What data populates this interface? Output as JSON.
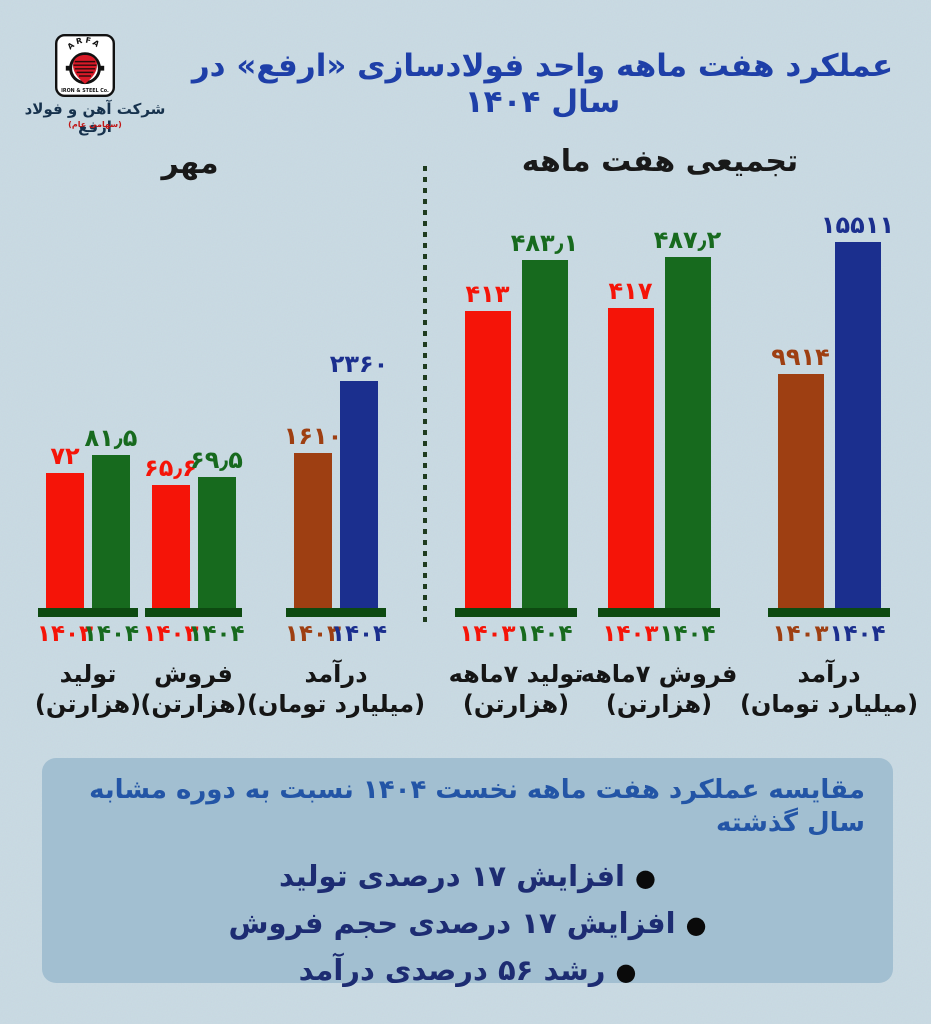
{
  "header": {
    "title": "عملکرد هفت ماهه واحد فولادسازی «ارفع» در سال ۱۴۰۴",
    "logo": {
      "arc_text": "ARFA",
      "sub_text": "IRON & STEEL Co.",
      "company_fa": "شرکت آهن و فولاد ارفع",
      "company_type": "(سهامی عام)"
    }
  },
  "colors": {
    "background": "#c9dae3",
    "red": "#f51408",
    "green": "#176a1e",
    "brown": "#9e3f12",
    "blue": "#1b2f8e",
    "baseline_green": "#0d4a11",
    "title_blue": "#1e3fa8",
    "summary_box_bg": "#a2bfd1",
    "summary_heading_blue": "#2355a6",
    "summary_text_navy": "#1d2c72"
  },
  "chart_data": [
    {
      "type": "bar",
      "title": "مهر",
      "legend_years": [
        "۱۴۰۳",
        "۱۴۰۴"
      ],
      "pairs": [
        {
          "category": "تولید",
          "unit": "(هزارتن)",
          "values": [
            72,
            81.5
          ],
          "value_labels": [
            "۷۲",
            "۸۱٫۵"
          ],
          "year_labels": [
            "۱۴۰۳",
            "۱۴۰۴"
          ],
          "palette": "tons"
        },
        {
          "category": "فروش",
          "unit": "(هزارتن)",
          "values": [
            65.6,
            69.5
          ],
          "value_labels": [
            "۶۵٫۶",
            "۶۹٫۵"
          ],
          "year_labels": [
            "۱۴۰۳",
            "۱۴۰۴"
          ],
          "palette": "tons"
        },
        {
          "category": "درآمد",
          "unit": "(میلیارد تومان)",
          "values": [
            1610,
            2360
          ],
          "value_labels": [
            "۱۶۱۰",
            "۲۳۶۰"
          ],
          "year_labels": [
            "۱۴۰۳",
            "۱۴۰۴"
          ],
          "palette": "money"
        }
      ]
    },
    {
      "type": "bar",
      "title": "تجمیعی هفت ماهه",
      "legend_years": [
        "۱۴۰۳",
        "۱۴۰۴"
      ],
      "pairs": [
        {
          "category": "تولید ۷ماهه",
          "unit": "(هزارتن)",
          "values": [
            413,
            483.1
          ],
          "value_labels": [
            "۴۱۳",
            "۴۸۳٫۱"
          ],
          "year_labels": [
            "۱۴۰۳",
            "۱۴۰۴"
          ],
          "palette": "tons"
        },
        {
          "category": "فروش ۷ماهه",
          "unit": "(هزارتن)",
          "values": [
            417,
            487.2
          ],
          "value_labels": [
            "۴۱۷",
            "۴۸۷٫۲"
          ],
          "year_labels": [
            "۱۴۰۳",
            "۱۴۰۴"
          ],
          "palette": "tons"
        },
        {
          "category": "درآمد",
          "unit": "(میلیارد تومان)",
          "values": [
            9914,
            15511
          ],
          "value_labels": [
            "۹۹۱۴",
            "۱۵۵۱۱"
          ],
          "year_labels": [
            "۱۴۰۳",
            "۱۴۰۴"
          ],
          "palette": "money"
        }
      ]
    }
  ],
  "summary": {
    "heading": "مقایسه عملکرد هفت ماهه نخست ۱۴۰۴ نسبت به دوره مشابه سال گذشته",
    "bullet_char": "●",
    "bullets": [
      "افزایش ۱۷ درصدی تولید",
      "افزایش ۱۷ درصدی حجم فروش",
      "رشد ۵۶ درصدی درآمد"
    ]
  }
}
